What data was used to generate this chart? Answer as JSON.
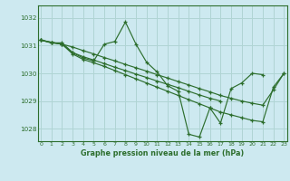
{
  "title": "Graphe pression niveau de la mer (hPa)",
  "background_color": "#cde9f0",
  "grid_color": "#b0d4d4",
  "line_color": "#2d6e2d",
  "xlim": [
    -0.3,
    23.3
  ],
  "ylim": [
    1027.55,
    1032.45
  ],
  "yticks": [
    1028,
    1029,
    1030,
    1031,
    1032
  ],
  "xticks": [
    0,
    1,
    2,
    3,
    4,
    5,
    6,
    7,
    8,
    9,
    10,
    11,
    12,
    13,
    14,
    15,
    16,
    17,
    18,
    19,
    20,
    21,
    22,
    23
  ],
  "line1_x": [
    0,
    1,
    2,
    3,
    4,
    5,
    6,
    7,
    8,
    9,
    10,
    11,
    12,
    13,
    14,
    15,
    16,
    17,
    18,
    19,
    20,
    21
  ],
  "line1_y": [
    1031.2,
    1031.1,
    1031.1,
    1030.75,
    1030.55,
    1030.45,
    1031.05,
    1031.15,
    1031.85,
    1031.05,
    1030.4,
    1030.05,
    1029.55,
    1029.35,
    1027.8,
    1027.7,
    1028.75,
    1028.2,
    1029.45,
    1029.65,
    1030.0,
    1029.95
  ],
  "line2_x": [
    0,
    1,
    2,
    3,
    4,
    5,
    6,
    7,
    8,
    9,
    10,
    11,
    12,
    13,
    14,
    15,
    16,
    17,
    18,
    19,
    20,
    21,
    22,
    23
  ],
  "line2_y": [
    1031.2,
    1031.1,
    1031.05,
    1030.7,
    1030.5,
    1030.38,
    1030.25,
    1030.1,
    1029.95,
    1029.8,
    1029.65,
    1029.5,
    1029.35,
    1029.2,
    1029.05,
    1028.9,
    1028.75,
    1028.6,
    1028.5,
    1028.4,
    1028.3,
    1028.25,
    1029.5,
    1030.0
  ],
  "line3_x": [
    0,
    1,
    2,
    3,
    4,
    5,
    6,
    7,
    8,
    9,
    10,
    11,
    12,
    13,
    14,
    15,
    16,
    17,
    18,
    19,
    20,
    21,
    22,
    23
  ],
  "line3_y": [
    1031.2,
    1031.12,
    1031.05,
    1030.95,
    1030.82,
    1030.7,
    1030.57,
    1030.45,
    1030.32,
    1030.2,
    1030.08,
    1029.95,
    1029.83,
    1029.7,
    1029.58,
    1029.45,
    1029.33,
    1029.2,
    1029.1,
    1029.0,
    1028.92,
    1028.85,
    1029.4,
    1030.0
  ],
  "line4_x": [
    0,
    1,
    2,
    3,
    4,
    5,
    6,
    7,
    8,
    9,
    10,
    11,
    12,
    13,
    14,
    15,
    16,
    17
  ],
  "line4_y": [
    1031.2,
    1031.12,
    1031.05,
    1030.75,
    1030.6,
    1030.48,
    1030.35,
    1030.22,
    1030.1,
    1029.97,
    1029.85,
    1029.72,
    1029.6,
    1029.48,
    1029.35,
    1029.22,
    1029.1,
    1029.0
  ]
}
